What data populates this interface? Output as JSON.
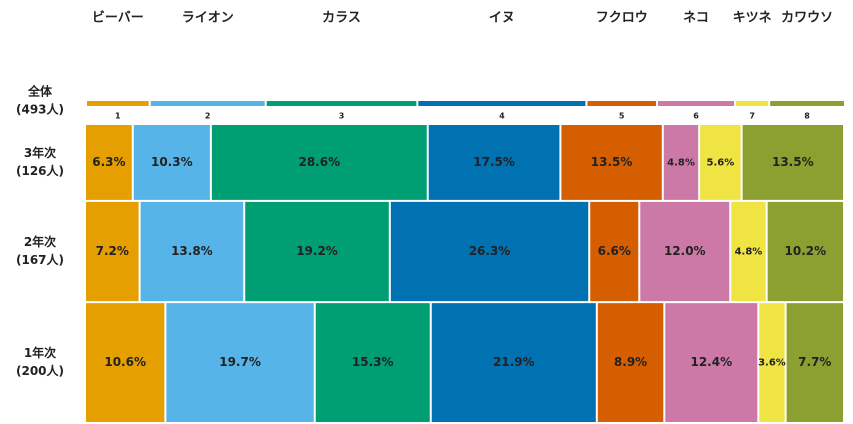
{
  "chart_data": {
    "type": "mekko",
    "categories": [
      "ビーバー",
      "ライオン",
      "カラス",
      "イヌ",
      "フクロウ",
      "ネコ",
      "キツネ",
      "カワウソ"
    ],
    "colors": [
      "#e69f00",
      "#56b4e9",
      "#009e73",
      "#0072b2",
      "#d55e00",
      "#cc79a7",
      "#f0e442",
      "#8ca032"
    ],
    "total": {
      "name": "全体",
      "size_label": "(493人)",
      "size": 493,
      "values": [
        8.4,
        15.3,
        20.0,
        22.3,
        9.3,
        10.3,
        4.5,
        10.0
      ],
      "rank_labels": [
        "1",
        "2",
        "3",
        "4",
        "5",
        "6",
        "7",
        "8"
      ]
    },
    "rows": [
      {
        "name": "3年次",
        "size": 126,
        "size_label": "(126人)",
        "values": [
          6.3,
          10.3,
          28.6,
          17.5,
          13.5,
          4.8,
          5.6,
          13.5
        ],
        "value_labels": [
          "6.3%",
          "10.3%",
          "28.6%",
          "17.5%",
          "13.5%",
          "4.8%",
          "5.6%",
          "13.5%"
        ]
      },
      {
        "name": "2年次",
        "size": 167,
        "size_label": "(167人)",
        "values": [
          7.2,
          13.8,
          19.2,
          26.3,
          6.6,
          12.0,
          4.8,
          10.2
        ],
        "value_labels": [
          "7.2%",
          "13.8%",
          "19.2%",
          "26.3%",
          "6.6%",
          "12.0%",
          "4.8%",
          "10.2%"
        ]
      },
      {
        "name": "1年次",
        "size": 200,
        "size_label": "(200人)",
        "values": [
          10.6,
          19.7,
          15.3,
          21.9,
          8.9,
          12.4,
          3.6,
          7.7
        ],
        "value_labels": [
          "10.6%",
          "19.7%",
          "15.3%",
          "21.9%",
          "8.9%",
          "12.4%",
          "3.6%",
          "7.7%"
        ]
      }
    ]
  }
}
